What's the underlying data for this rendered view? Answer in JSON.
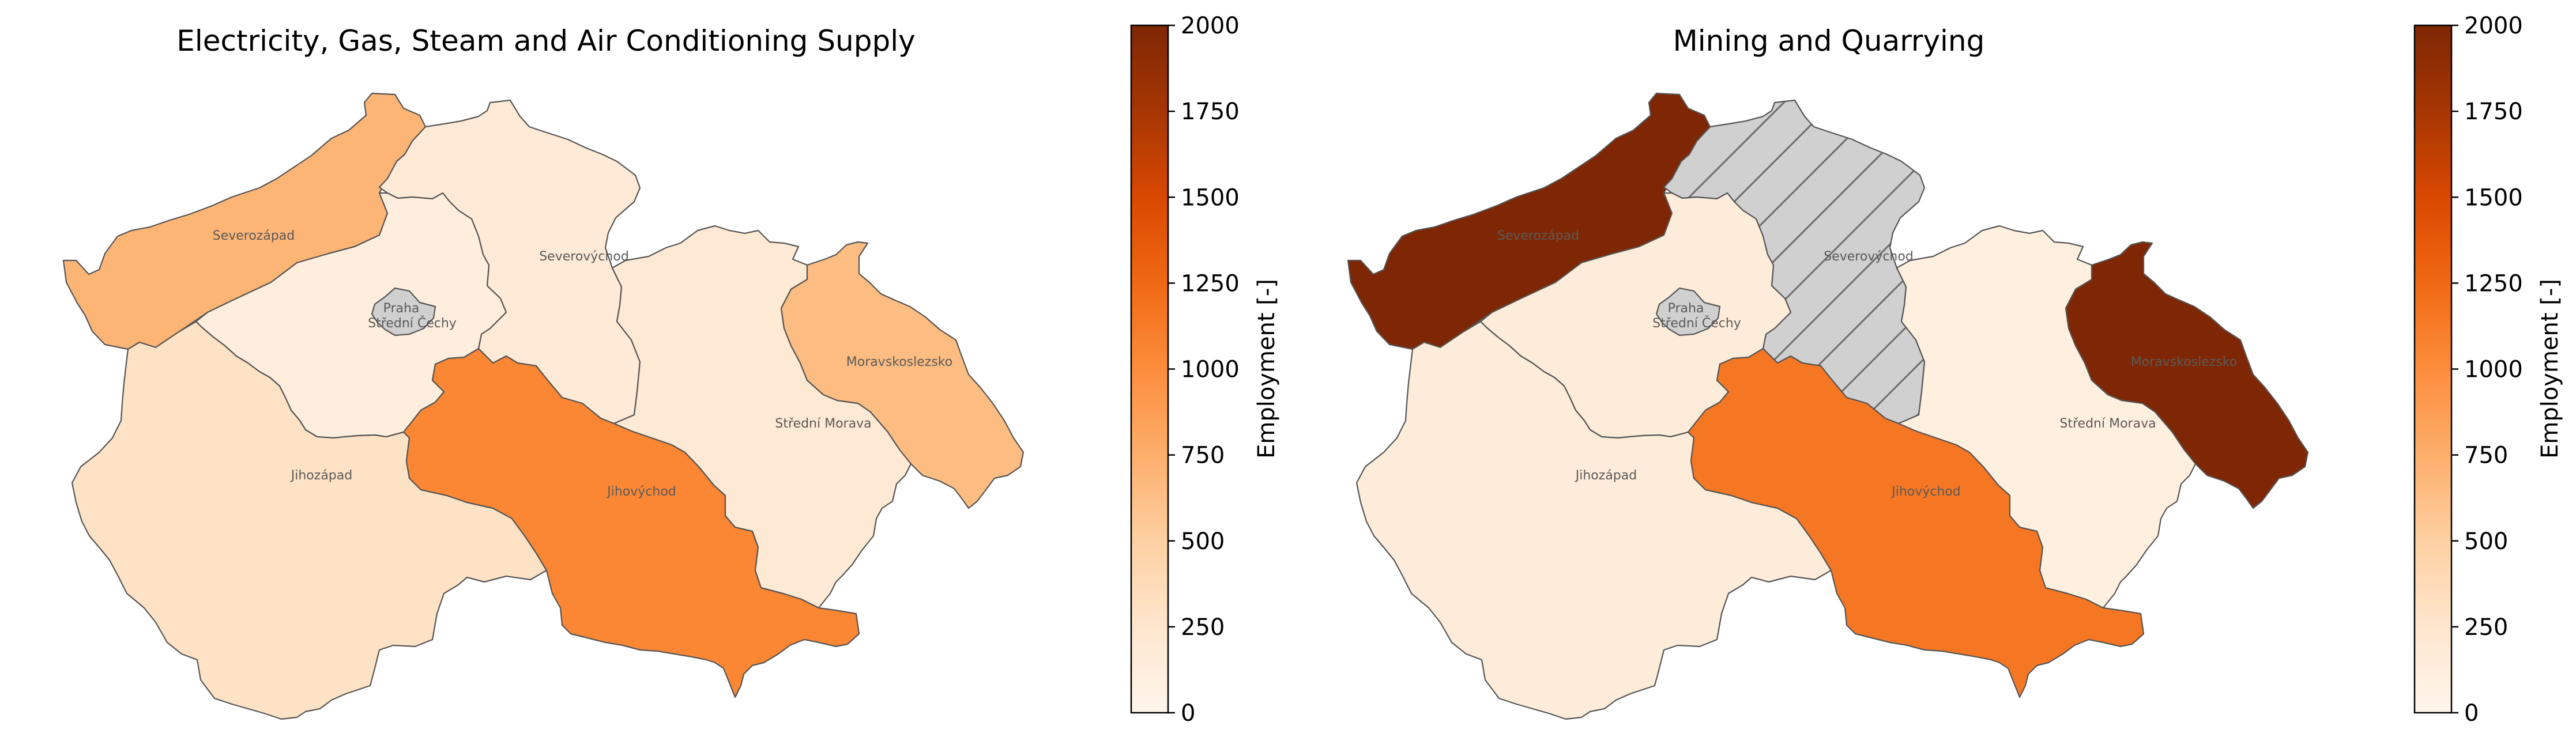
{
  "regions": [
    {
      "id": "severozapad",
      "label": "Severozápad"
    },
    {
      "id": "severovychod",
      "label": "Severovýchod"
    },
    {
      "id": "stredni-cechy",
      "label": "Střední Čechy"
    },
    {
      "id": "praha",
      "label": "Praha"
    },
    {
      "id": "jihozapad",
      "label": "Jihozápad"
    },
    {
      "id": "jihovychod",
      "label": "Jihovýchod"
    },
    {
      "id": "stredni-morava",
      "label": "Střední Morava"
    },
    {
      "id": "moravskoslezsko",
      "label": "Moravskoslezsko"
    }
  ],
  "colors": {
    "nodata": "#d0d0d0",
    "hatch": "#6e6e6e",
    "cmap": [
      "#fff5eb",
      "#fee6ce",
      "#fdd0a2",
      "#fdae6b",
      "#fd8d3c",
      "#f16913",
      "#d94801",
      "#a63603",
      "#7f2704"
    ]
  },
  "colorbar": {
    "label": "Employment [-]",
    "min": 0,
    "max": 2000,
    "ticks": [
      "0",
      "250",
      "500",
      "750",
      "1000",
      "1250",
      "1500",
      "1750",
      "2000"
    ]
  },
  "panels": [
    {
      "title": "Electricity, Gas, Steam and Air Conditioning Supply",
      "values": {
        "severozapad": 700,
        "severovychod": 180,
        "stredni-cechy": 120,
        "praha": null,
        "jihozapad": 300,
        "jihovychod": 1050,
        "stredni-morava": 200,
        "moravskoslezsko": 650
      }
    },
    {
      "title": "Mining and Quarrying",
      "values": {
        "severozapad": 2000,
        "severovychod": null,
        "stredni-cechy": 150,
        "praha": null,
        "jihozapad": 150,
        "jihovychod": 1150,
        "stredni-morava": 100,
        "moravskoslezsko": 2000
      }
    }
  ]
}
